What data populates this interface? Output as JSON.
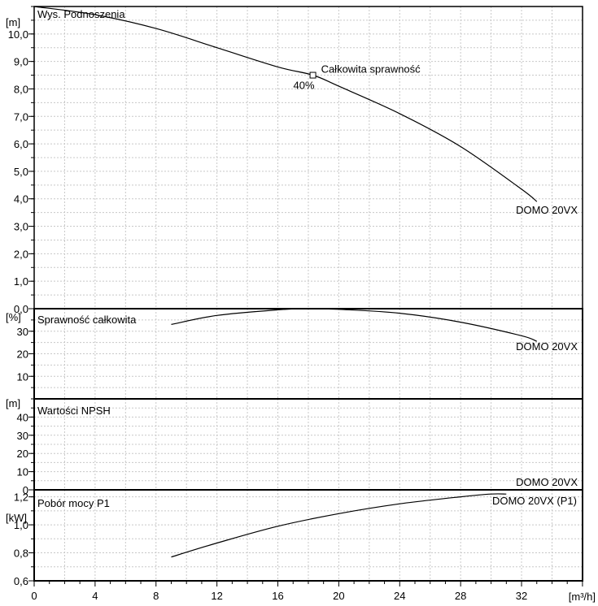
{
  "chart_data": [
    {
      "type": "line",
      "title": "Wys. Podnoszenia",
      "ylabel": "[m]",
      "ylim": [
        0,
        11
      ],
      "yticks": [
        "0,0",
        "1,0",
        "2,0",
        "3,0",
        "4,0",
        "5,0",
        "6,0",
        "7,0",
        "8,0",
        "9,0",
        "10,0"
      ],
      "series": [
        {
          "name": "DOMO 20VX",
          "x": [
            0,
            4,
            8,
            12,
            16,
            18.3,
            20,
            24,
            28,
            32,
            33
          ],
          "y": [
            11.0,
            10.7,
            10.2,
            9.5,
            8.8,
            8.5,
            8.1,
            7.1,
            5.9,
            4.35,
            3.9
          ]
        }
      ],
      "annotation": {
        "label": "Całkowita sprawność",
        "value_label": "40%",
        "x": 18.3,
        "y": 8.5
      }
    },
    {
      "type": "line",
      "title": "Sprawność całkowita",
      "ylabel": "[%]",
      "ylim": [
        0,
        40
      ],
      "yticks": [
        "10",
        "20",
        "30"
      ],
      "series": [
        {
          "name": "DOMO 20VX",
          "x": [
            9,
            12,
            16,
            18,
            20,
            24,
            28,
            32,
            33
          ],
          "y": [
            33,
            37,
            39.5,
            40,
            39.7,
            38,
            34,
            28,
            25.5
          ]
        }
      ]
    },
    {
      "type": "line",
      "title": "Wartości NPSH",
      "ylabel": "[m]",
      "ylim": [
        0,
        50
      ],
      "yticks": [
        "0",
        "10",
        "20",
        "30",
        "40"
      ],
      "series": [
        {
          "name": "DOMO 20VX",
          "x": [],
          "y": []
        }
      ]
    },
    {
      "type": "line",
      "title": "Pobór mocy P1",
      "ylabel": "[kW]",
      "ylim": [
        0.6,
        1.25
      ],
      "yticks": [
        "0,6",
        "0,8",
        "1,0",
        "1,2"
      ],
      "series": [
        {
          "name": "DOMO 20VX (P1)",
          "x": [
            9,
            12,
            16,
            20,
            24,
            28,
            30,
            31
          ],
          "y": [
            0.77,
            0.87,
            0.99,
            1.08,
            1.15,
            1.2,
            1.22,
            1.22
          ]
        }
      ]
    }
  ],
  "x_axis": {
    "label": "[m³/h]",
    "xlim": [
      0,
      36
    ],
    "ticks": [
      "0",
      "4",
      "8",
      "12",
      "16",
      "20",
      "24",
      "28",
      "32"
    ]
  }
}
